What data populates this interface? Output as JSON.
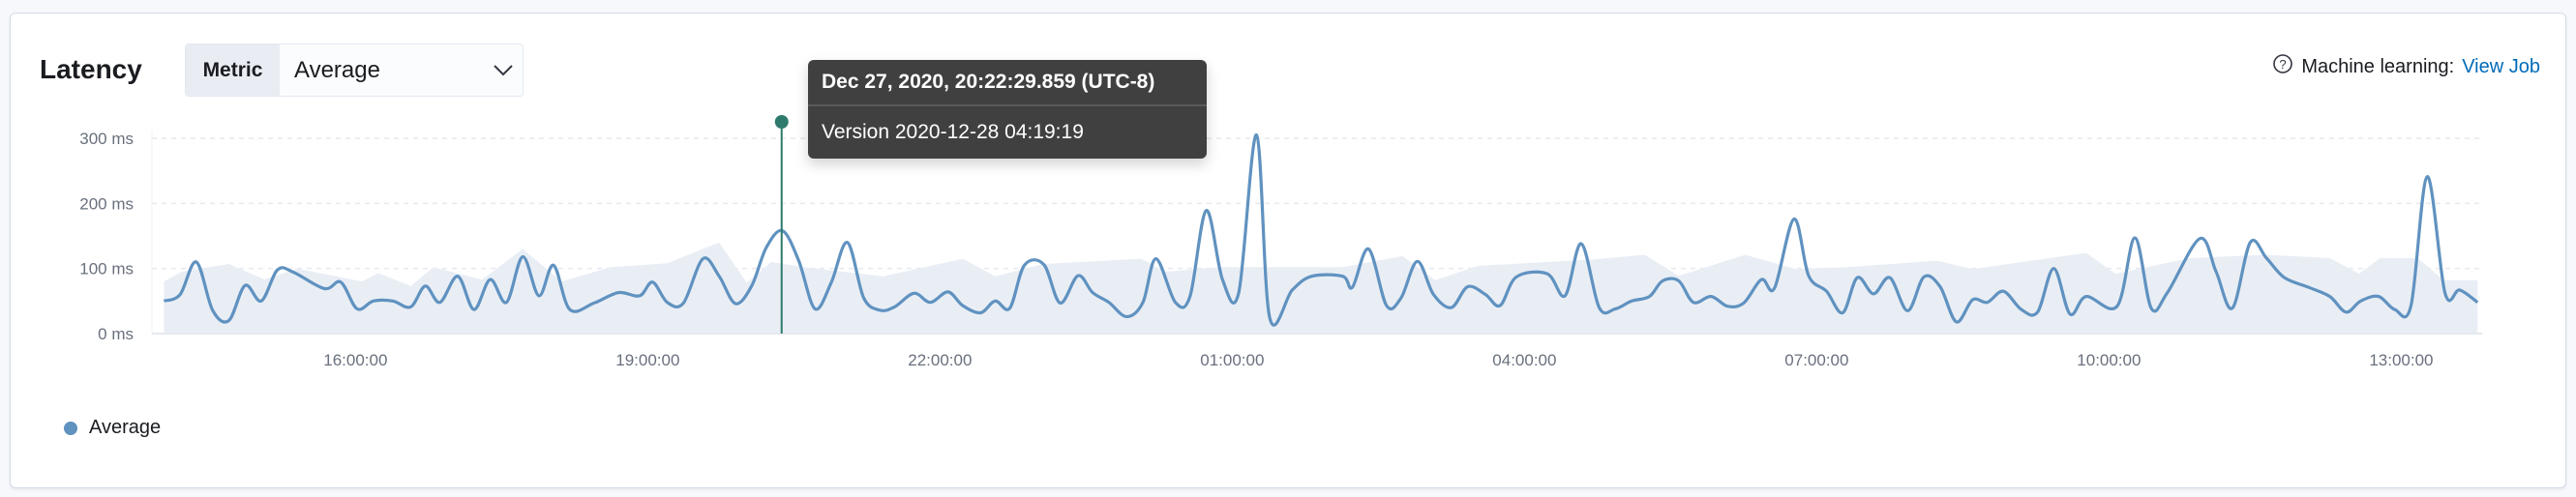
{
  "title": "Latency",
  "metric_select": {
    "prepend_label": "Metric",
    "selected": "Average"
  },
  "ml": {
    "label": "Machine learning:",
    "link": "View Job",
    "icon": "question-circle-icon"
  },
  "colors": {
    "line": "#6092c0",
    "band": "#e9eef5",
    "marker": "#2e7a6c",
    "link": "#006bb8",
    "tooltip_bg": "#404040"
  },
  "tooltip": {
    "title": "Dec 27, 2020, 20:22:29.859 (UTC-8)",
    "body": "Version 2020-12-28 04:19:19"
  },
  "legend": [
    {
      "label": "Average",
      "color": "#6092c0"
    }
  ],
  "chart_data": {
    "type": "line",
    "title": "Latency",
    "xlabel": "",
    "ylabel": "",
    "ylim": [
      0,
      300
    ],
    "y_ticks": [
      "0 ms",
      "100 ms",
      "200 ms",
      "300 ms"
    ],
    "y_tick_values": [
      0,
      100,
      200,
      300
    ],
    "x_ticks": [
      "16:00:00",
      "19:00:00",
      "22:00:00",
      "01:00:00",
      "04:00:00",
      "07:00:00",
      "10:00:00",
      "13:00:00"
    ],
    "x_tick_values": [
      "2020-12-27T16:00",
      "2020-12-27T19:00",
      "2020-12-27T22:00",
      "2020-12-28T01:00",
      "2020-12-28T04:00",
      "2020-12-28T07:00",
      "2020-12-28T10:00",
      "2020-12-28T13:00"
    ],
    "xlim": [
      "2020-12-27T14:00",
      "2020-12-28T13:47"
    ],
    "grid": "horizontal dashed",
    "legend_position": "bottom-left",
    "annotation": {
      "x": "2020-12-27T20:22:29",
      "label": "Version 2020-12-28 04:19:19"
    },
    "series": [
      {
        "name": "Average",
        "unit": "ms",
        "points": [
          [
            "2020-12-27T14:02",
            50
          ],
          [
            "2020-12-27T14:12",
            60
          ],
          [
            "2020-12-27T14:22",
            110
          ],
          [
            "2020-12-27T14:32",
            36
          ],
          [
            "2020-12-27T14:42",
            20
          ],
          [
            "2020-12-27T14:52",
            74
          ],
          [
            "2020-12-27T15:02",
            50
          ],
          [
            "2020-12-27T15:12",
            98
          ],
          [
            "2020-12-27T15:22",
            94
          ],
          [
            "2020-12-27T15:41",
            69
          ],
          [
            "2020-12-27T15:51",
            79
          ],
          [
            "2020-12-27T16:01",
            38
          ],
          [
            "2020-12-27T16:11",
            50
          ],
          [
            "2020-12-27T16:23",
            50
          ],
          [
            "2020-12-27T16:34",
            41
          ],
          [
            "2020-12-27T16:43",
            73
          ],
          [
            "2020-12-27T16:52",
            48
          ],
          [
            "2020-12-27T17:03",
            88
          ],
          [
            "2020-12-27T17:13",
            37
          ],
          [
            "2020-12-27T17:23",
            83
          ],
          [
            "2020-12-27T17:33",
            48
          ],
          [
            "2020-12-27T17:43",
            118
          ],
          [
            "2020-12-27T17:53",
            58
          ],
          [
            "2020-12-27T18:02",
            105
          ],
          [
            "2020-12-27T18:12",
            37
          ],
          [
            "2020-12-27T18:27",
            47
          ],
          [
            "2020-12-27T18:42",
            63
          ],
          [
            "2020-12-27T18:55",
            58
          ],
          [
            "2020-12-27T19:03",
            79
          ],
          [
            "2020-12-27T19:12",
            48
          ],
          [
            "2020-12-27T19:22",
            47
          ],
          [
            "2020-12-27T19:34",
            115
          ],
          [
            "2020-12-27T19:44",
            88
          ],
          [
            "2020-12-27T19:54",
            46
          ],
          [
            "2020-12-27T20:04",
            73
          ],
          [
            "2020-12-27T20:13",
            132
          ],
          [
            "2020-12-27T20:23",
            158
          ],
          [
            "2020-12-27T20:33",
            112
          ],
          [
            "2020-12-27T20:43",
            38
          ],
          [
            "2020-12-27T20:53",
            78
          ],
          [
            "2020-12-27T21:03",
            140
          ],
          [
            "2020-12-27T21:13",
            55
          ],
          [
            "2020-12-27T21:23",
            36
          ],
          [
            "2020-12-27T21:32",
            41
          ],
          [
            "2020-12-27T21:44",
            62
          ],
          [
            "2020-12-27T21:54",
            48
          ],
          [
            "2020-12-27T22:05",
            64
          ],
          [
            "2020-12-27T22:14",
            43
          ],
          [
            "2020-12-27T22:25",
            32
          ],
          [
            "2020-12-27T22:34",
            50
          ],
          [
            "2020-12-27T22:43",
            39
          ],
          [
            "2020-12-27T22:52",
            105
          ],
          [
            "2020-12-27T23:04",
            106
          ],
          [
            "2020-12-27T23:14",
            47
          ],
          [
            "2020-12-27T23:25",
            89
          ],
          [
            "2020-12-27T23:34",
            63
          ],
          [
            "2020-12-27T23:44",
            48
          ],
          [
            "2020-12-27T23:55",
            26
          ],
          [
            "2020-12-28T00:05",
            48
          ],
          [
            "2020-12-28T00:13",
            115
          ],
          [
            "2020-12-28T00:25",
            48
          ],
          [
            "2020-12-28T00:34",
            57
          ],
          [
            "2020-12-28T00:44",
            189
          ],
          [
            "2020-12-28T00:54",
            83
          ],
          [
            "2020-12-28T01:04",
            63
          ],
          [
            "2020-12-28T01:15",
            305
          ],
          [
            "2020-12-28T01:23",
            25
          ],
          [
            "2020-12-28T01:37",
            67
          ],
          [
            "2020-12-28T01:49",
            88
          ],
          [
            "2020-12-28T02:08",
            88
          ],
          [
            "2020-12-28T02:14",
            71
          ],
          [
            "2020-12-28T02:24",
            130
          ],
          [
            "2020-12-28T02:35",
            43
          ],
          [
            "2020-12-28T02:44",
            55
          ],
          [
            "2020-12-28T02:54",
            111
          ],
          [
            "2020-12-28T03:04",
            60
          ],
          [
            "2020-12-28T03:15",
            40
          ],
          [
            "2020-12-28T03:25",
            72
          ],
          [
            "2020-12-28T03:36",
            60
          ],
          [
            "2020-12-28T03:45",
            43
          ],
          [
            "2020-12-28T03:55",
            87
          ],
          [
            "2020-12-28T04:14",
            92
          ],
          [
            "2020-12-28T04:25",
            58
          ],
          [
            "2020-12-28T04:35",
            138
          ],
          [
            "2020-12-28T04:46",
            40
          ],
          [
            "2020-12-28T04:56",
            38
          ],
          [
            "2020-12-28T05:06",
            50
          ],
          [
            "2020-12-28T05:17",
            57
          ],
          [
            "2020-12-28T05:25",
            81
          ],
          [
            "2020-12-28T05:35",
            81
          ],
          [
            "2020-12-28T05:44",
            48
          ],
          [
            "2020-12-28T05:55",
            57
          ],
          [
            "2020-12-28T06:05",
            42
          ],
          [
            "2020-12-28T06:15",
            47
          ],
          [
            "2020-12-28T06:26",
            83
          ],
          [
            "2020-12-28T06:34",
            70
          ],
          [
            "2020-12-28T06:46",
            176
          ],
          [
            "2020-12-28T06:55",
            89
          ],
          [
            "2020-12-28T07:06",
            65
          ],
          [
            "2020-12-28T07:16",
            32
          ],
          [
            "2020-12-28T07:25",
            86
          ],
          [
            "2020-12-28T07:35",
            61
          ],
          [
            "2020-12-28T07:45",
            86
          ],
          [
            "2020-12-28T07:56",
            35
          ],
          [
            "2020-12-28T08:06",
            87
          ],
          [
            "2020-12-28T08:16",
            72
          ],
          [
            "2020-12-28T08:26",
            18
          ],
          [
            "2020-12-28T08:36",
            52
          ],
          [
            "2020-12-28T08:45",
            48
          ],
          [
            "2020-12-28T08:55",
            65
          ],
          [
            "2020-12-28T09:06",
            37
          ],
          [
            "2020-12-28T09:16",
            33
          ],
          [
            "2020-12-28T09:26",
            100
          ],
          [
            "2020-12-28T09:36",
            30
          ],
          [
            "2020-12-28T09:46",
            57
          ],
          [
            "2020-12-28T10:05",
            42
          ],
          [
            "2020-12-28T10:16",
            147
          ],
          [
            "2020-12-28T10:26",
            39
          ],
          [
            "2020-12-28T10:36",
            63
          ],
          [
            "2020-12-28T10:56",
            146
          ],
          [
            "2020-12-28T11:06",
            95
          ],
          [
            "2020-12-28T11:16",
            39
          ],
          [
            "2020-12-28T11:27",
            140
          ],
          [
            "2020-12-28T11:37",
            116
          ],
          [
            "2020-12-28T11:48",
            86
          ],
          [
            "2020-12-28T12:03",
            71
          ],
          [
            "2020-12-28T12:16",
            57
          ],
          [
            "2020-12-28T12:26",
            33
          ],
          [
            "2020-12-28T12:35",
            50
          ],
          [
            "2020-12-28T12:46",
            57
          ],
          [
            "2020-12-28T12:56",
            37
          ],
          [
            "2020-12-28T13:06",
            43
          ],
          [
            "2020-12-28T13:16",
            241
          ],
          [
            "2020-12-28T13:27",
            62
          ],
          [
            "2020-12-28T13:36",
            67
          ],
          [
            "2020-12-28T13:47",
            48
          ]
        ]
      },
      {
        "type": "area",
        "role": "expected bounds",
        "lower": 0,
        "unit": "ms",
        "points": [
          [
            "2020-12-27T14:02",
            80
          ],
          [
            "2020-12-27T14:13",
            95
          ],
          [
            "2020-12-27T14:42",
            107
          ],
          [
            "2020-12-27T15:04",
            83
          ],
          [
            "2020-12-27T15:24",
            100
          ],
          [
            "2020-12-27T16:04",
            80
          ],
          [
            "2020-12-27T16:14",
            93
          ],
          [
            "2020-12-27T16:34",
            73
          ],
          [
            "2020-12-27T16:48",
            102
          ],
          [
            "2020-12-27T17:18",
            83
          ],
          [
            "2020-12-27T17:43",
            130
          ],
          [
            "2020-12-27T18:07",
            80
          ],
          [
            "2020-12-27T18:37",
            102
          ],
          [
            "2020-12-27T19:12",
            108
          ],
          [
            "2020-12-27T19:44",
            140
          ],
          [
            "2020-12-27T20:01",
            78
          ],
          [
            "2020-12-27T20:16",
            110
          ],
          [
            "2020-12-27T20:36",
            102
          ],
          [
            "2020-12-27T21:25",
            88
          ],
          [
            "2020-12-27T22:14",
            115
          ],
          [
            "2020-12-27T22:34",
            88
          ],
          [
            "2020-12-27T23:04",
            107
          ],
          [
            "2020-12-28T00:04",
            115
          ],
          [
            "2020-12-28T00:19",
            95
          ],
          [
            "2020-12-28T00:53",
            102
          ],
          [
            "2020-12-28T01:31",
            102
          ],
          [
            "2020-12-28T02:08",
            102
          ],
          [
            "2020-12-28T02:45",
            119
          ],
          [
            "2020-12-28T03:05",
            82
          ],
          [
            "2020-12-28T03:31",
            104
          ],
          [
            "2020-12-28T04:43",
            114
          ],
          [
            "2020-12-28T05:14",
            121
          ],
          [
            "2020-12-28T05:35",
            89
          ],
          [
            "2020-12-28T06:16",
            121
          ],
          [
            "2020-12-28T06:47",
            99
          ],
          [
            "2020-12-28T07:19",
            102
          ],
          [
            "2020-12-28T08:14",
            112
          ],
          [
            "2020-12-28T08:36",
            99
          ],
          [
            "2020-12-28T09:46",
            124
          ],
          [
            "2020-12-28T10:04",
            92
          ],
          [
            "2020-12-28T10:50",
            116
          ],
          [
            "2020-12-28T11:37",
            121
          ],
          [
            "2020-12-28T12:16",
            116
          ],
          [
            "2020-12-28T12:34",
            92
          ],
          [
            "2020-12-28T12:47",
            116
          ],
          [
            "2020-12-28T13:10",
            116
          ],
          [
            "2020-12-28T13:26",
            82
          ],
          [
            "2020-12-28T13:47",
            82
          ]
        ]
      }
    ]
  }
}
